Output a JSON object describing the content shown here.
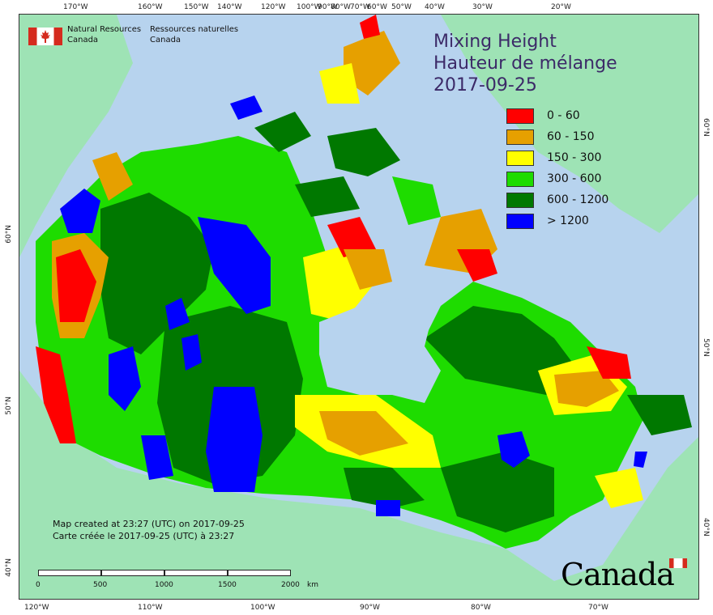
{
  "logo": {
    "en_line1": "Natural Resources",
    "en_line2": "Canada",
    "fr_line1": "Ressources naturelles",
    "fr_line2": "Canada"
  },
  "title": {
    "line1": "Mixing Height",
    "line2": "Hauteur de mélange",
    "date": "2017-09-25"
  },
  "legend": [
    {
      "label": "0 - 60",
      "color": "#ff0000"
    },
    {
      "label": "60 - 150",
      "color": "#e6a000"
    },
    {
      "label": "150 - 300",
      "color": "#ffff00"
    },
    {
      "label": "300 - 600",
      "color": "#1edc00"
    },
    {
      "label": "600 - 1200",
      "color": "#007800"
    },
    {
      "label": "> 1200",
      "color": "#0000ff"
    }
  ],
  "notes": {
    "line_en": "Map created at 23:27 (UTC) on 2017-09-25",
    "line_fr": "Carte créée le 2017-09-25 (UTC) à 23:27"
  },
  "scale": {
    "labels": [
      "0",
      "500",
      "1000",
      "1500",
      "2000"
    ],
    "unit": "km"
  },
  "ticks": {
    "top": [
      "170°W",
      "160°W",
      "150°W",
      "140°W",
      "120°W",
      "100°W",
      "90°W",
      "80°W",
      "70°W",
      "60°W",
      "50°W",
      "40°W",
      "30°W",
      "20°W"
    ],
    "bottom": [
      "120°W",
      "110°W",
      "100°W",
      "90°W",
      "80°W",
      "70°W"
    ],
    "left": [
      "60°N",
      "50°N",
      "40°N"
    ],
    "right": [
      "60°N",
      "50°N",
      "40°N"
    ]
  },
  "wordmark": "Canada",
  "colors": {
    "ocean": "#b7d3ee",
    "land_other": "#9ee3b5",
    "lakes": "#b7d3ee"
  }
}
